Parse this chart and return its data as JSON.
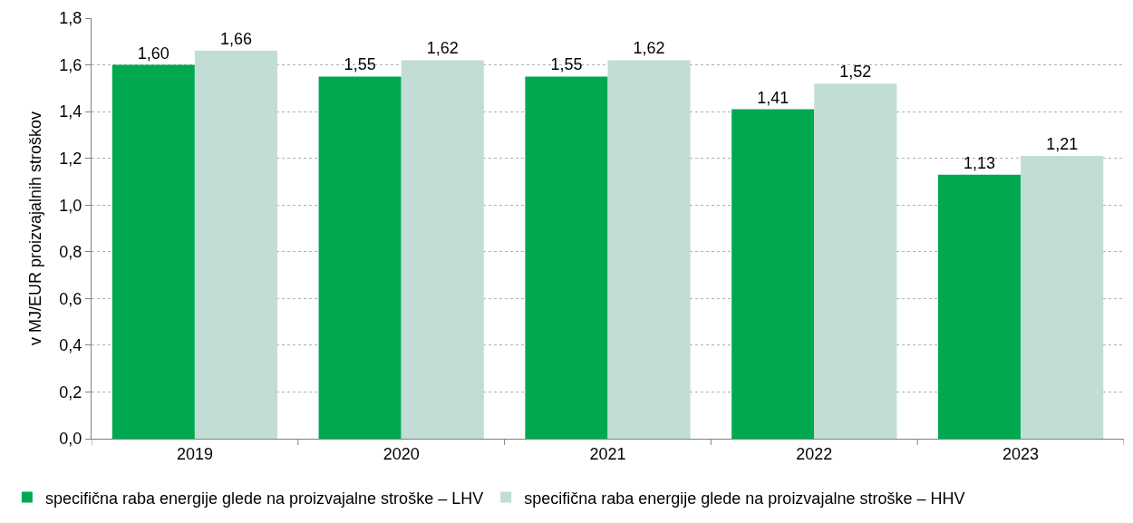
{
  "chart_data": {
    "type": "bar",
    "ylabel": "v MJ/EUR proizvajalnih stroškov",
    "categories": [
      "2019",
      "2020",
      "2021",
      "2022",
      "2023"
    ],
    "series": [
      {
        "name": "specifična raba energije glede na proizvajalne stroške – LHV",
        "color": "#00a84f",
        "values": [
          1.6,
          1.55,
          1.55,
          1.41,
          1.13
        ],
        "value_labels": [
          "1,60",
          "1,55",
          "1,55",
          "1,41",
          "1,13"
        ]
      },
      {
        "name": "specifična raba energije glede na proizvajalne stroške – HHV",
        "color": "#c2dcd6",
        "values": [
          1.66,
          1.62,
          1.62,
          1.52,
          1.21
        ],
        "value_labels": [
          "1,66",
          "1,62",
          "1,62",
          "1,52",
          "1,21"
        ]
      }
    ],
    "ylim": [
      0,
      1.8
    ],
    "yticks": [
      {
        "value": 0,
        "label": "0,0"
      },
      {
        "value": 0.2,
        "label": "0,2"
      },
      {
        "value": 0.4,
        "label": "0,4"
      },
      {
        "value": 0.6,
        "label": "0,6"
      },
      {
        "value": 0.8,
        "label": "0,8"
      },
      {
        "value": 1.0,
        "label": "1,0"
      },
      {
        "value": 1.2,
        "label": "1,2"
      },
      {
        "value": 1.4,
        "label": "1,4"
      },
      {
        "value": 1.6,
        "label": "1,6"
      },
      {
        "value": 1.8,
        "label": "1,8"
      }
    ],
    "grid": "y",
    "legend": "bottom"
  }
}
